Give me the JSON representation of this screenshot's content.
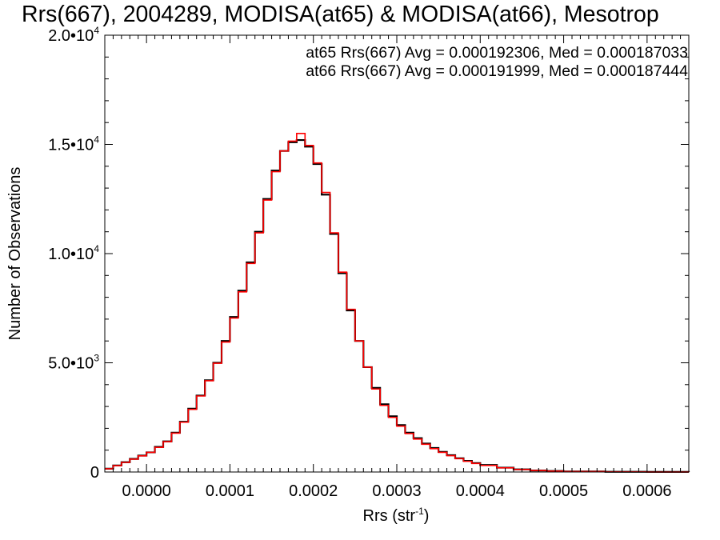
{
  "chart_data": {
    "type": "line",
    "title": "Rrs(667), 2004289, MODISA(at65) & MODISA(at66), Mesotrop",
    "xlabel": "Rrs (str",
    "xlabel_sup": "-1",
    "xlabel_suffix": ")",
    "ylabel": "Number of Observations",
    "xlim": [
      -5e-05,
      0.00065
    ],
    "ylim": [
      0,
      20000
    ],
    "x_ticks": [
      {
        "value": 0.0,
        "label": "0.0000"
      },
      {
        "value": 0.0001,
        "label": "0.0001"
      },
      {
        "value": 0.0002,
        "label": "0.0002"
      },
      {
        "value": 0.0003,
        "label": "0.0003"
      },
      {
        "value": 0.0004,
        "label": "0.0004"
      },
      {
        "value": 0.0005,
        "label": "0.0005"
      },
      {
        "value": 0.0006,
        "label": "0.0006"
      }
    ],
    "y_ticks": [
      {
        "value": 0,
        "label": "0",
        "sup": ""
      },
      {
        "value": 5000,
        "label": "5.0•10",
        "sup": "3"
      },
      {
        "value": 10000,
        "label": "1.0•10",
        "sup": "4"
      },
      {
        "value": 15000,
        "label": "1.5•10",
        "sup": "4"
      },
      {
        "value": 20000,
        "label": "2.0•10",
        "sup": "4"
      }
    ],
    "grid": false,
    "annotations": [
      {
        "text": "at65 Rrs(667) Avg = 0.000192306, Med = 0.000187033",
        "color": "#000000"
      },
      {
        "text": "at66 Rrs(667) Avg = 0.000191999, Med = 0.000187444",
        "color": "#ff0000"
      }
    ],
    "series": [
      {
        "color": "#000000",
        "x": [
          -5e-05,
          -4e-05,
          -3e-05,
          -2e-05,
          -1e-05,
          0.0,
          1e-05,
          2e-05,
          3e-05,
          4e-05,
          5e-05,
          6e-05,
          7e-05,
          8e-05,
          9e-05,
          0.0001,
          0.00011,
          0.00012,
          0.00013,
          0.00014,
          0.00015,
          0.00016,
          0.00017,
          0.00018,
          0.00019,
          0.0002,
          0.00021,
          0.00022,
          0.00023,
          0.00024,
          0.00025,
          0.00026,
          0.00027,
          0.00028,
          0.00029,
          0.0003,
          0.00031,
          0.00032,
          0.00033,
          0.00034,
          0.00035,
          0.00036,
          0.00037,
          0.00038,
          0.00039,
          0.0004,
          0.00042,
          0.00044,
          0.00046,
          0.00048,
          0.0005,
          0.00055,
          0.0006,
          0.00065
        ],
        "y": [
          150,
          300,
          450,
          600,
          750,
          900,
          1150,
          1400,
          1800,
          2300,
          2900,
          3500,
          4200,
          5000,
          6000,
          7100,
          8300,
          9600,
          11000,
          12500,
          13800,
          14700,
          15100,
          15200,
          14900,
          14100,
          12700,
          10900,
          9100,
          7400,
          6000,
          4800,
          3850,
          3100,
          2550,
          2150,
          1800,
          1550,
          1300,
          1100,
          920,
          770,
          630,
          510,
          410,
          320,
          200,
          120,
          70,
          45,
          25,
          10,
          5,
          0
        ]
      },
      {
        "color": "#ff0000",
        "x": [
          -5e-05,
          -4e-05,
          -3e-05,
          -2e-05,
          -1e-05,
          0.0,
          1e-05,
          2e-05,
          3e-05,
          4e-05,
          5e-05,
          6e-05,
          7e-05,
          8e-05,
          9e-05,
          0.0001,
          0.00011,
          0.00012,
          0.00013,
          0.00014,
          0.00015,
          0.00016,
          0.00017,
          0.00018,
          0.00019,
          0.0002,
          0.00021,
          0.00022,
          0.00023,
          0.00024,
          0.00025,
          0.00026,
          0.00027,
          0.00028,
          0.00029,
          0.0003,
          0.00031,
          0.00032,
          0.00033,
          0.00034,
          0.00035,
          0.00036,
          0.00037,
          0.00038,
          0.00039,
          0.0004,
          0.00042,
          0.00044,
          0.00046,
          0.00048,
          0.0005,
          0.00055,
          0.0006,
          0.00065
        ],
        "y": [
          150,
          290,
          440,
          590,
          740,
          900,
          1130,
          1390,
          1780,
          2280,
          2870,
          3480,
          4180,
          4980,
          5950,
          7050,
          8250,
          9550,
          10950,
          12450,
          13750,
          14700,
          15150,
          15500,
          14950,
          14150,
          12800,
          10950,
          9150,
          7450,
          6000,
          4800,
          3800,
          3050,
          2500,
          2100,
          1760,
          1510,
          1270,
          1070,
          900,
          750,
          610,
          490,
          390,
          300,
          190,
          115,
          65,
          40,
          22,
          9,
          4,
          0
        ]
      }
    ]
  }
}
